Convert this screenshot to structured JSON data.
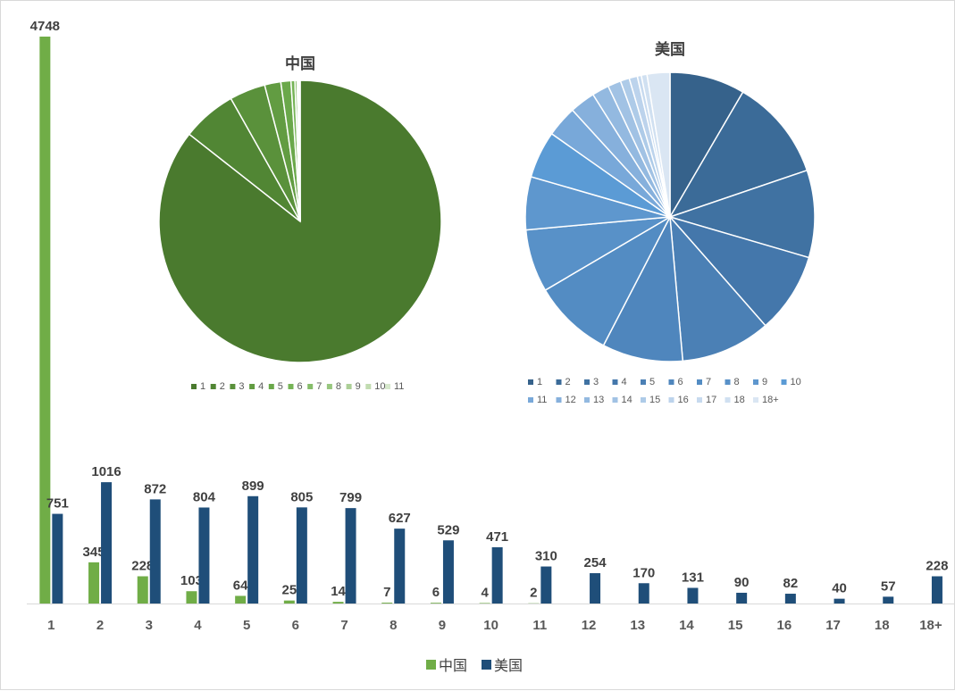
{
  "chart_data": [
    {
      "type": "bar",
      "categories": [
        "1",
        "2",
        "3",
        "4",
        "5",
        "6",
        "7",
        "8",
        "9",
        "10",
        "11",
        "12",
        "13",
        "14",
        "15",
        "16",
        "17",
        "18",
        "18+"
      ],
      "series": [
        {
          "name": "中国",
          "color": "#70ad47",
          "values": [
            4748,
            345,
            228,
            103,
            64,
            25,
            14,
            7,
            6,
            4,
            2,
            null,
            null,
            null,
            null,
            null,
            null,
            null,
            null
          ]
        },
        {
          "name": "美国",
          "color": "#1f4e79",
          "values": [
            751,
            1016,
            872,
            804,
            899,
            805,
            799,
            627,
            529,
            471,
            310,
            254,
            170,
            131,
            90,
            82,
            40,
            57,
            228
          ]
        }
      ],
      "legend_position": "bottom",
      "grid": false
    },
    {
      "type": "pie",
      "title": "中国",
      "labels": [
        "1",
        "2",
        "3",
        "4",
        "5",
        "6",
        "7",
        "8",
        "9",
        "10",
        "11"
      ],
      "values": [
        4748,
        345,
        228,
        103,
        64,
        25,
        14,
        7,
        6,
        4,
        2
      ],
      "colors": [
        "#4a7a2e",
        "#518634",
        "#5a913b",
        "#629c42",
        "#6aa84a",
        "#76b456",
        "#86bd6a",
        "#98c77f",
        "#accf97",
        "#c1dcb1",
        "#d6e8cc"
      ],
      "legend_position": "bottom"
    },
    {
      "type": "pie",
      "title": "美国",
      "labels": [
        "1",
        "2",
        "3",
        "4",
        "5",
        "6",
        "7",
        "8",
        "9",
        "10",
        "11",
        "12",
        "13",
        "14",
        "15",
        "16",
        "17",
        "18",
        "18+"
      ],
      "values": [
        751,
        1016,
        872,
        804,
        899,
        805,
        799,
        627,
        529,
        471,
        310,
        254,
        170,
        131,
        90,
        82,
        40,
        57,
        228
      ],
      "colors": [
        "#36628b",
        "#3b6b98",
        "#4072a2",
        "#4477ab",
        "#4b80b5",
        "#4f86bd",
        "#538cc3",
        "#5891c8",
        "#5e97ce",
        "#5b9bd5",
        "#78a8d9",
        "#86b0dc",
        "#93b9e0",
        "#a1c2e4",
        "#aecbe8",
        "#bcd3ec",
        "#c7daef",
        "#d0e0f1",
        "#dae6f3"
      ],
      "legend_position": "bottom"
    }
  ]
}
